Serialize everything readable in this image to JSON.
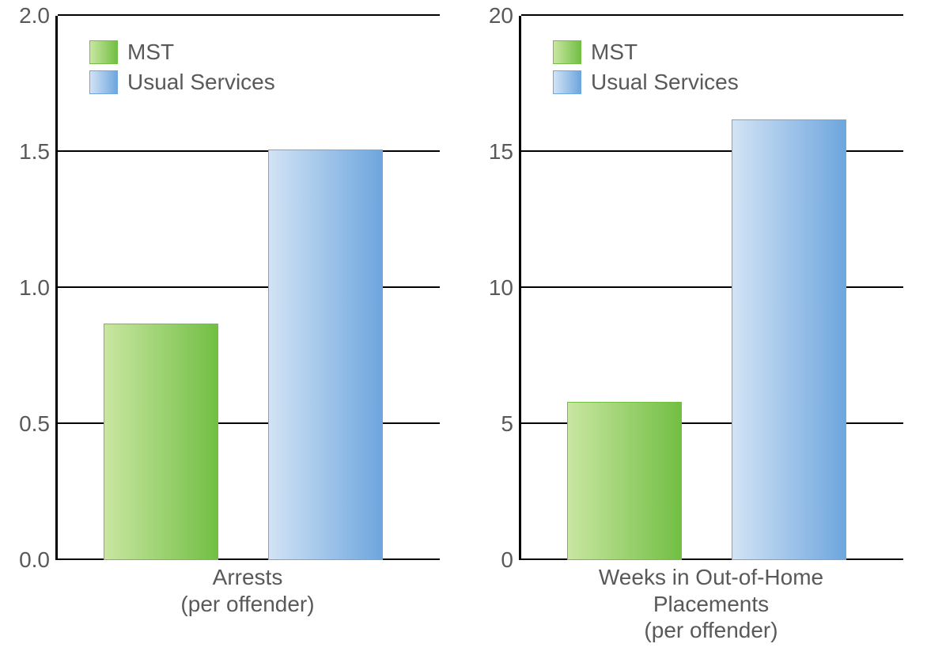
{
  "chart_left": {
    "type": "bar",
    "ylim": [
      0.0,
      2.0
    ],
    "yticks": [
      0.0,
      0.5,
      1.0,
      1.5,
      2.0
    ],
    "ytick_labels": [
      "0.0",
      "0.5",
      "1.0",
      "1.5",
      "2.0"
    ],
    "tick_fontsize": 28,
    "tick_color": "#58595b",
    "axis_color": "#000000",
    "axis_width": 3,
    "grid_color": "#000000",
    "background_color": "#ffffff",
    "bars": [
      {
        "series": "MST",
        "value": 0.87,
        "gradient_start": "#c9e6a1",
        "gradient_end": "#72bf44",
        "border_color": "#72bf44",
        "left_pct": 12,
        "width_pct": 30
      },
      {
        "series": "Usual Services",
        "value": 1.51,
        "gradient_start": "#d2e3f5",
        "gradient_end": "#6ea6de",
        "border_color": "#6ea6de",
        "left_pct": 55,
        "width_pct": 30
      }
    ],
    "xlabel_line1": "Arrests",
    "xlabel_line2": "(per offender)",
    "xlabel_line3": "",
    "legend": {
      "items": [
        {
          "label": "MST",
          "swatch_start": "#c9e6a1",
          "swatch_end": "#72bf44",
          "swatch_border": "#72bf44"
        },
        {
          "label": "Usual Services",
          "swatch_start": "#d2e3f5",
          "swatch_end": "#6ea6de",
          "swatch_border": "#6ea6de"
        }
      ],
      "fontsize": 28,
      "text_color": "#58595b"
    }
  },
  "chart_right": {
    "type": "bar",
    "ylim": [
      0,
      20
    ],
    "yticks": [
      0,
      5,
      10,
      15,
      20
    ],
    "ytick_labels": [
      "0",
      "5",
      "10",
      "15",
      "20"
    ],
    "tick_fontsize": 28,
    "tick_color": "#58595b",
    "axis_color": "#000000",
    "axis_width": 3,
    "grid_color": "#000000",
    "background_color": "#ffffff",
    "bars": [
      {
        "series": "MST",
        "value": 5.8,
        "gradient_start": "#c9e6a1",
        "gradient_end": "#72bf44",
        "border_color": "#72bf44",
        "left_pct": 12,
        "width_pct": 30
      },
      {
        "series": "Usual Services",
        "value": 16.2,
        "gradient_start": "#d2e3f5",
        "gradient_end": "#6ea6de",
        "border_color": "#6ea6de",
        "left_pct": 55,
        "width_pct": 30
      }
    ],
    "xlabel_line1": "Weeks in Out-of-Home",
    "xlabel_line2": "Placements",
    "xlabel_line3": "(per offender)",
    "legend": {
      "items": [
        {
          "label": "MST",
          "swatch_start": "#c9e6a1",
          "swatch_end": "#72bf44",
          "swatch_border": "#72bf44"
        },
        {
          "label": "Usual Services",
          "swatch_start": "#d2e3f5",
          "swatch_end": "#6ea6de",
          "swatch_border": "#6ea6de"
        }
      ],
      "fontsize": 28,
      "text_color": "#58595b"
    }
  }
}
